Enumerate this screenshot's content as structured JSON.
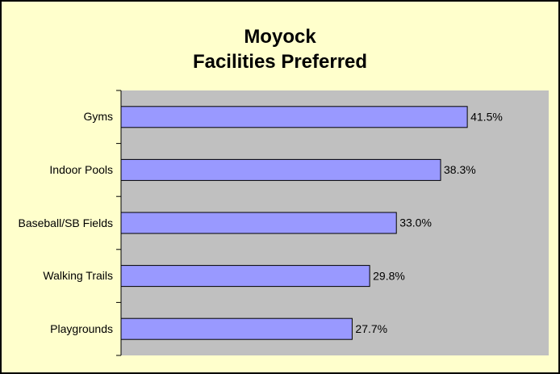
{
  "chart_data": {
    "type": "bar",
    "orientation": "horizontal",
    "title": [
      "Moyock",
      "Facilities Preferred"
    ],
    "categories": [
      "Gyms",
      "Indoor Pools",
      "Baseball/SB Fields",
      "Walking Trails",
      "Playgrounds"
    ],
    "values": [
      41.5,
      38.3,
      33.0,
      29.8,
      27.7
    ],
    "value_labels": [
      "41.5%",
      "38.3%",
      "33.0%",
      "29.8%",
      "27.7%"
    ],
    "color": "#9999ff"
  }
}
